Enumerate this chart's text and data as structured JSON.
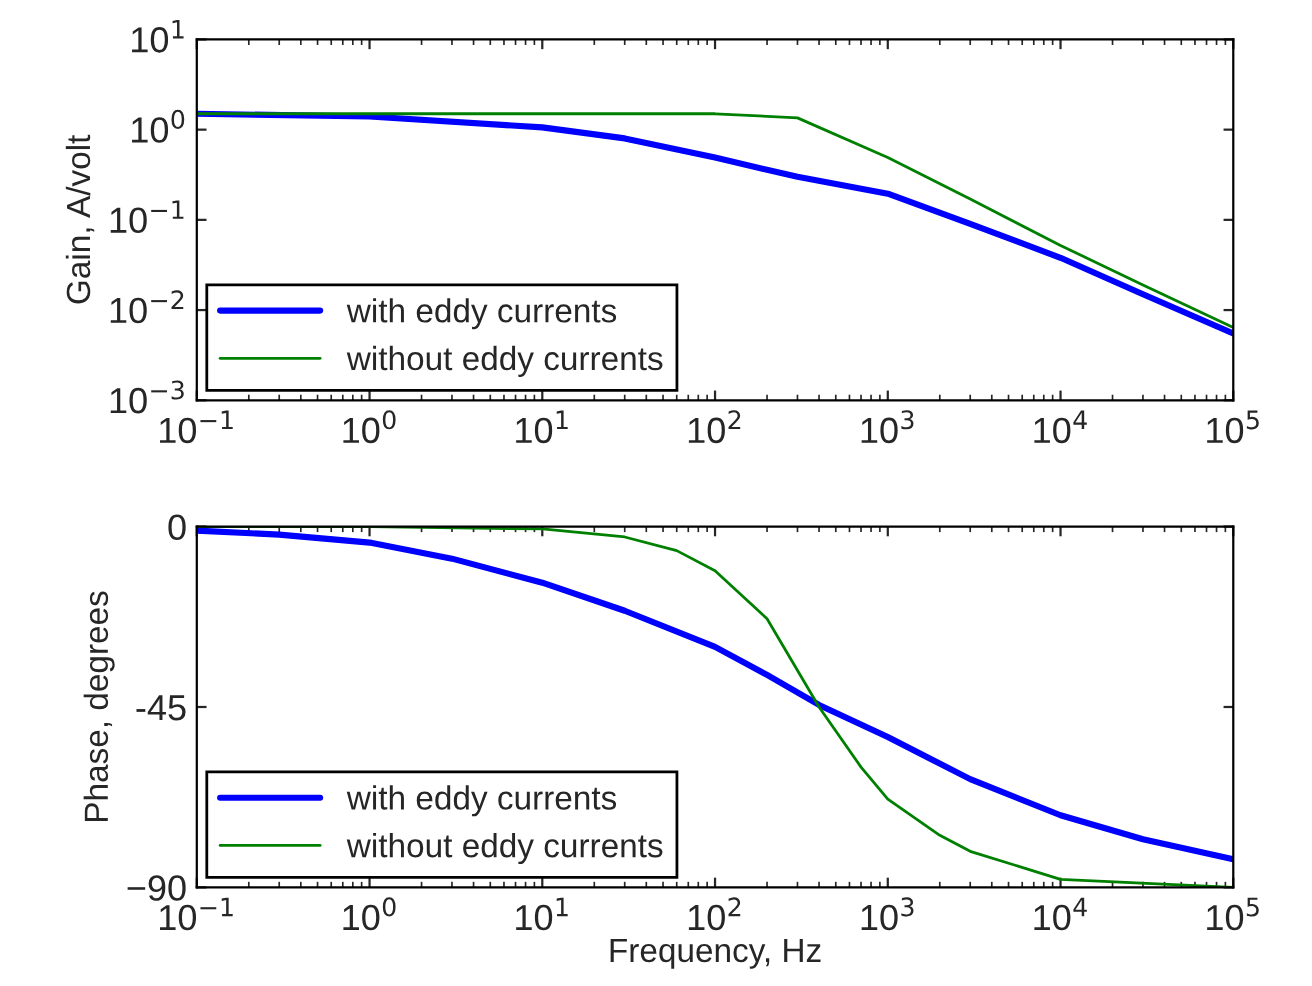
{
  "chart_data": [
    {
      "type": "line",
      "ylabel": "Gain, A/volt",
      "log": "xy",
      "xlim": [
        0.1,
        100000
      ],
      "ylim": [
        0.001,
        10
      ],
      "xticks": [
        {
          "value": 0.1,
          "label": "10$^{−1}$"
        },
        {
          "value": 1,
          "label": "10$^{0}$"
        },
        {
          "value": 10,
          "label": "10$^{1}$"
        },
        {
          "value": 100,
          "label": "10$^{2}$"
        },
        {
          "value": 1000,
          "label": "10$^{3}$"
        },
        {
          "value": 10000,
          "label": "10$^{4}$"
        },
        {
          "value": 100000,
          "label": "10$^{5}$"
        }
      ],
      "yticks": [
        {
          "value": 0.001,
          "label": "10$^{−3}$"
        },
        {
          "value": 0.01,
          "label": "10$^{−2}$"
        },
        {
          "value": 0.1,
          "label": "10$^{−1}$"
        },
        {
          "value": 1,
          "label": "10$^{0}$"
        },
        {
          "value": 10,
          "label": "10$^{1}$"
        }
      ],
      "grid": false,
      "legend": "bottom left",
      "marker": "none",
      "line_style": "solid",
      "x": [
        0.1,
        1,
        10,
        30,
        100,
        300,
        1000,
        3000,
        10000,
        30000,
        100000
      ],
      "series": [
        {
          "name": "with eddy currents",
          "color": "#0000ff",
          "values": [
            1.5,
            1.4,
            1.06,
            0.8,
            0.49,
            0.3,
            0.195,
            0.09,
            0.038,
            0.015,
            0.0055
          ]
        },
        {
          "name": "without eddy currents",
          "color": "#008000",
          "values": [
            1.5,
            1.5,
            1.5,
            1.5,
            1.5,
            1.35,
            0.49,
            0.17,
            0.052,
            0.019,
            0.0064
          ]
        }
      ]
    },
    {
      "type": "line",
      "xlabel": "Frequency, Hz",
      "ylabel": "Phase, degrees",
      "log": "x",
      "xlim": [
        0.1,
        100000
      ],
      "ylim": [
        -90,
        0
      ],
      "xticks": [
        {
          "value": 0.1,
          "label": "10$^{−1}$"
        },
        {
          "value": 1,
          "label": "10$^{0}$"
        },
        {
          "value": 10,
          "label": "10$^{1}$"
        },
        {
          "value": 100,
          "label": "10$^{2}$"
        },
        {
          "value": 1000,
          "label": "10$^{3}$"
        },
        {
          "value": 10000,
          "label": "10$^{4}$"
        },
        {
          "value": 100000,
          "label": "10$^{5}$"
        }
      ],
      "yticks": [
        {
          "value": -90,
          "label": "−90"
        },
        -45,
        0
      ],
      "grid": false,
      "legend": "bottom left",
      "marker": "none",
      "line_style": "solid",
      "series": [
        {
          "name": "with eddy currents",
          "color": "#0000ff",
          "x": [
            0.1,
            0.3,
            1,
            3,
            10,
            30,
            100,
            200,
            400,
            1000,
            3000,
            10000,
            30000,
            100000
          ],
          "values": [
            -1,
            -2,
            -4,
            -8,
            -14,
            -21,
            -30,
            -37,
            -44.5,
            -52.5,
            -63,
            -72,
            -78,
            -83
          ]
        },
        {
          "name": "without eddy currents",
          "color": "#008000",
          "x": [
            0.1,
            1,
            10,
            30,
            60,
            100,
            200,
            400,
            700,
            1000,
            2000,
            3000,
            10000,
            100000
          ],
          "values": [
            0,
            0,
            -0.6,
            -2.6,
            -6,
            -11,
            -23,
            -45,
            -60,
            -68,
            -77,
            -81,
            -88,
            -90
          ]
        }
      ]
    }
  ]
}
